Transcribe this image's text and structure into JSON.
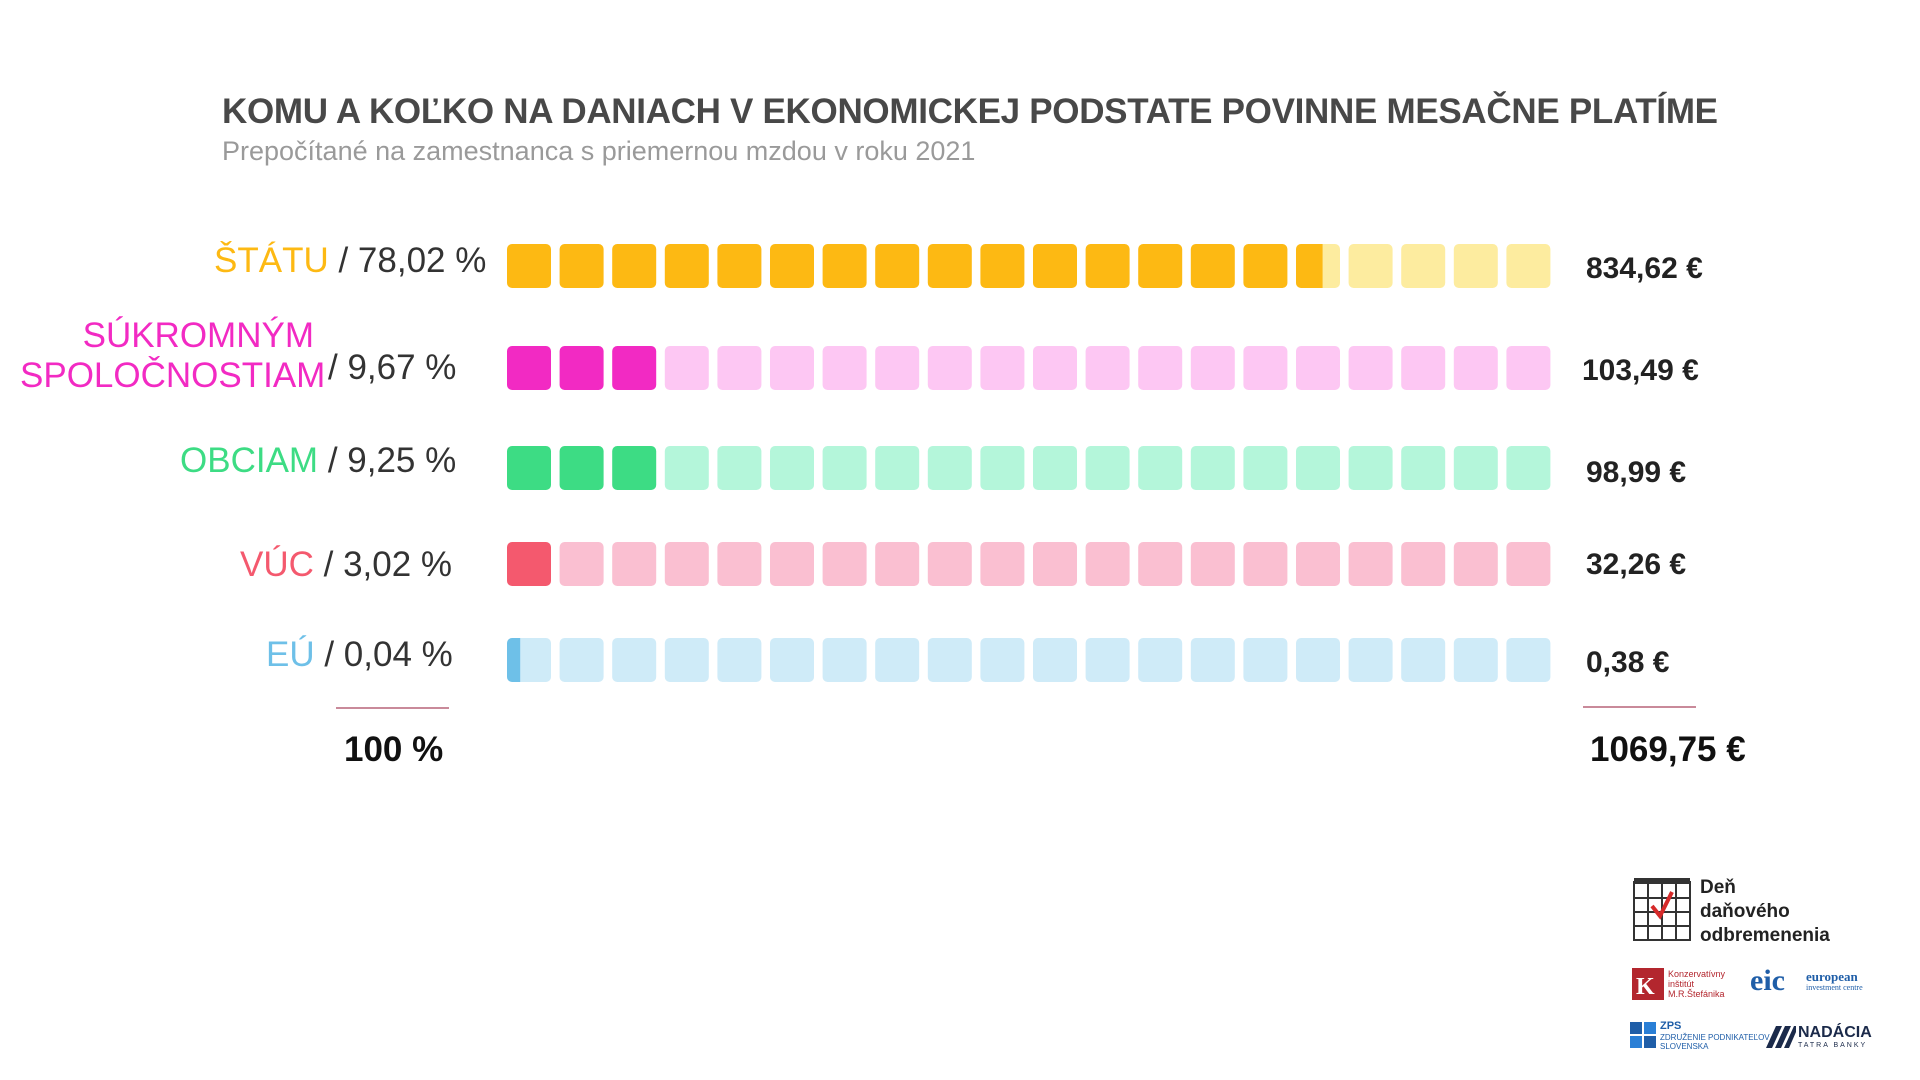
{
  "title": "KOMU A KOĽKO NA DANIACH V EKONOMICKEJ PODSTATE POVINNE MESAČNE PLATÍME",
  "subtitle": "Prepočítané na zamestnanca s priemernou mzdou v roku 2021",
  "chart_data": {
    "type": "waffle",
    "squares_per_row": 20,
    "rows": [
      {
        "name_lines": [
          "ŠTÁTU"
        ],
        "percent_text": "/ 78,02 %",
        "percent": 78.02,
        "amount": "834,62 €",
        "filled_squares": 15.604,
        "color": "#FDB913",
        "light": "#FDEC9F"
      },
      {
        "name_lines": [
          "SÚKROMNÝM",
          "SPOLOČNOSTIAM"
        ],
        "percent_text": "/ 9,67 %",
        "percent": 9.67,
        "amount": "103,49 €",
        "filled_squares": 3,
        "color": "#F22AC3",
        "light": "#FDC7F3"
      },
      {
        "name_lines": [
          "OBCIAM"
        ],
        "percent_text": "/ 9,25 %",
        "percent": 9.25,
        "amount": "98,99 €",
        "filled_squares": 3,
        "color": "#3DDC84",
        "light": "#B4F6DA"
      },
      {
        "name_lines": [
          "VÚC"
        ],
        "percent_text": "/ 3,02 %",
        "percent": 3.02,
        "amount": "32,26 €",
        "filled_squares": 1,
        "color": "#F4596E",
        "light": "#FABFD1"
      },
      {
        "name_lines": [
          "EÚ"
        ],
        "percent_text": "/ 0,04 %",
        "percent": 0.04,
        "amount": "0,38 €",
        "filled_squares": 0.3,
        "color": "#6EC0E8",
        "light": "#CFEBF8"
      }
    ],
    "total_percent": "100 %",
    "total_amount": "1069,75 €"
  },
  "logos": {
    "calendar_text": [
      "Deň",
      "daňového",
      "odbremenenia"
    ],
    "konzervativny": [
      "Konzervatívny",
      "inštitút",
      "M.R.Štefánika"
    ],
    "eic": "eic",
    "eic_sub": [
      "european",
      "investment centre"
    ],
    "zps": [
      "ZPS",
      "ZDRUŽENIE PODNIKATEĽOV",
      "SLOVENSKA"
    ],
    "nadacia": "NADÁCIA",
    "nadacia_sub": "TATRA BANKY"
  }
}
